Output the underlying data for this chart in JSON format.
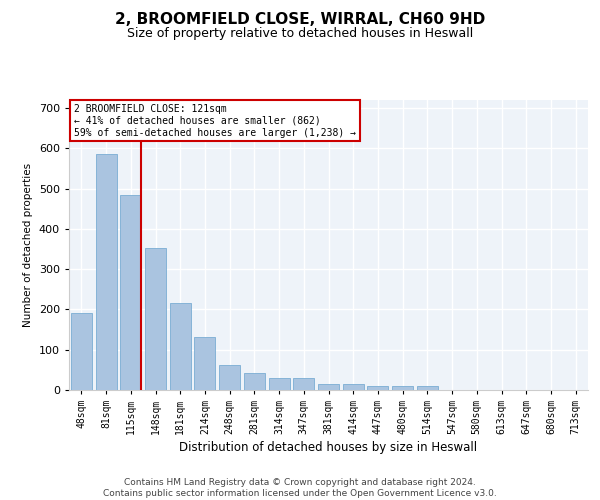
{
  "title": "2, BROOMFIELD CLOSE, WIRRAL, CH60 9HD",
  "subtitle": "Size of property relative to detached houses in Heswall",
  "xlabel": "Distribution of detached houses by size in Heswall",
  "ylabel": "Number of detached properties",
  "categories": [
    "48sqm",
    "81sqm",
    "115sqm",
    "148sqm",
    "181sqm",
    "214sqm",
    "248sqm",
    "281sqm",
    "314sqm",
    "347sqm",
    "381sqm",
    "414sqm",
    "447sqm",
    "480sqm",
    "514sqm",
    "547sqm",
    "580sqm",
    "613sqm",
    "647sqm",
    "680sqm",
    "713sqm"
  ],
  "values": [
    190,
    585,
    485,
    352,
    215,
    132,
    62,
    41,
    31,
    31,
    16,
    16,
    9,
    10,
    10,
    0,
    0,
    0,
    0,
    0,
    0
  ],
  "bar_color": "#aac4e0",
  "bar_edge_color": "#7aadd4",
  "bg_color": "#eef3f9",
  "grid_color": "#ffffff",
  "annotation_text": "2 BROOMFIELD CLOSE: 121sqm\n← 41% of detached houses are smaller (862)\n59% of semi-detached houses are larger (1,238) →",
  "annotation_box_color": "#ffffff",
  "annotation_box_edge_color": "#cc0000",
  "vline_color": "#cc0000",
  "ylim": [
    0,
    720
  ],
  "yticks": [
    0,
    100,
    200,
    300,
    400,
    500,
    600,
    700
  ],
  "footnote": "Contains HM Land Registry data © Crown copyright and database right 2024.\nContains public sector information licensed under the Open Government Licence v3.0.",
  "title_fontsize": 11,
  "subtitle_fontsize": 9,
  "footnote_fontsize": 6.5
}
